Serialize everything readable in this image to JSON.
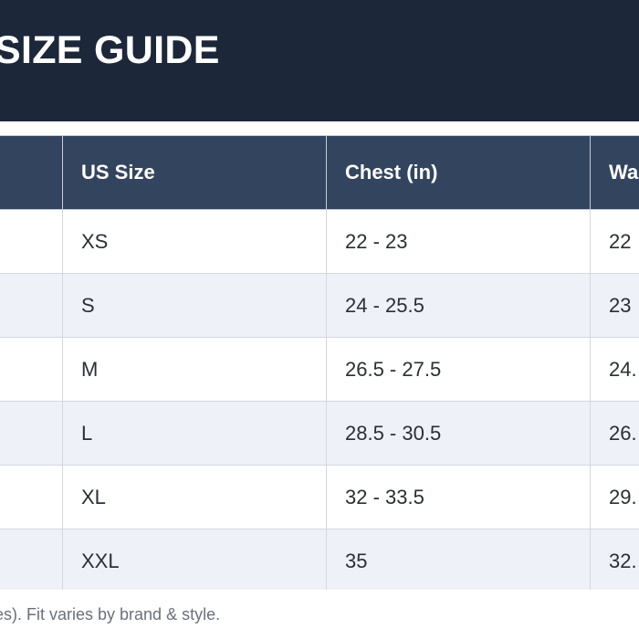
{
  "banner": {
    "title": "SIZE GUIDE",
    "background_color": "#1c273a"
  },
  "table": {
    "headers": [
      "",
      "US Size",
      "Chest (in)",
      "Wa"
    ],
    "rows": [
      [
        "",
        "XS",
        "22 - 23",
        "22"
      ],
      [
        "",
        "S",
        "24 - 25.5",
        "23"
      ],
      [
        "",
        "M",
        "26.5 - 27.5",
        "24."
      ],
      [
        "",
        "L",
        "28.5 - 30.5",
        "26."
      ],
      [
        "",
        "XL",
        "32 - 33.5",
        "29."
      ],
      [
        "",
        "XXL",
        "35",
        "32."
      ]
    ],
    "header_color": "#33455e",
    "stripe_color": "#eef1f7"
  },
  "footnote": "es). Fit varies by brand & style."
}
